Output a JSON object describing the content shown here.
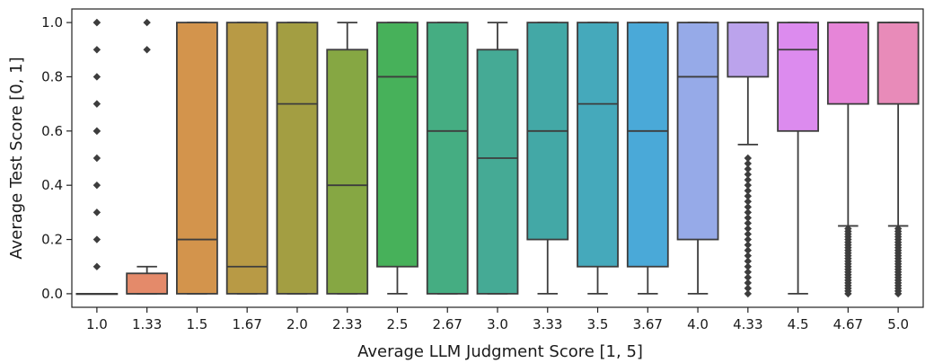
{
  "chart_data": {
    "type": "boxplot",
    "title": "",
    "xlabel": "Average LLM Judgment Score [1, 5]",
    "ylabel": "Average Test Score [0, 1]",
    "ylim": [
      -0.05,
      1.05
    ],
    "yticks": [
      0.0,
      0.2,
      0.4,
      0.6,
      0.8,
      1.0
    ],
    "ytick_labels": [
      "0.0",
      "0.2",
      "0.4",
      "0.6",
      "0.8",
      "1.0"
    ],
    "grid": false,
    "legend": "none",
    "categories": [
      "1.0",
      "1.33",
      "1.5",
      "1.67",
      "2.0",
      "2.33",
      "2.5",
      "2.67",
      "3.0",
      "3.33",
      "3.5",
      "3.67",
      "4.0",
      "4.33",
      "4.5",
      "4.67",
      "5.0"
    ],
    "boxes": [
      {
        "category": "1.0",
        "color": "#e27c7c",
        "q1": 0.0,
        "median": 0.0,
        "q3": 0.0,
        "whisker_low": 0.0,
        "whisker_high": 0.0,
        "fliers": [
          0.1,
          0.2,
          0.3,
          0.4,
          0.5,
          0.6,
          0.6,
          0.7,
          0.8,
          0.9,
          1.0,
          1.0
        ]
      },
      {
        "category": "1.33",
        "color": "#e48a6a",
        "q1": 0.0,
        "median": 0.0,
        "q3": 0.075,
        "whisker_low": 0.0,
        "whisker_high": 0.1,
        "fliers": [
          0.9,
          1.0
        ]
      },
      {
        "category": "1.5",
        "color": "#d3944c",
        "q1": 0.0,
        "median": 0.2,
        "q3": 1.0,
        "whisker_low": 0.0,
        "whisker_high": 1.0,
        "fliers": []
      },
      {
        "category": "1.67",
        "color": "#b89a45",
        "q1": 0.0,
        "median": 0.1,
        "q3": 1.0,
        "whisker_low": 0.0,
        "whisker_high": 1.0,
        "fliers": []
      },
      {
        "category": "2.0",
        "color": "#a39e42",
        "q1": 0.0,
        "median": 0.7,
        "q3": 1.0,
        "whisker_low": 0.0,
        "whisker_high": 1.0,
        "fliers": []
      },
      {
        "category": "2.33",
        "color": "#86a743",
        "q1": 0.0,
        "median": 0.4,
        "q3": 0.9,
        "whisker_low": 0.0,
        "whisker_high": 1.0,
        "fliers": []
      },
      {
        "category": "2.5",
        "color": "#47b15a",
        "q1": 0.1,
        "median": 0.8,
        "q3": 1.0,
        "whisker_low": 0.0,
        "whisker_high": 1.0,
        "fliers": []
      },
      {
        "category": "2.67",
        "color": "#45ad82",
        "q1": 0.0,
        "median": 0.6,
        "q3": 1.0,
        "whisker_low": 0.0,
        "whisker_high": 1.0,
        "fliers": []
      },
      {
        "category": "3.0",
        "color": "#45aa95",
        "q1": 0.0,
        "median": 0.5,
        "q3": 0.9,
        "whisker_low": 0.0,
        "whisker_high": 1.0,
        "fliers": []
      },
      {
        "category": "3.33",
        "color": "#43a8a6",
        "q1": 0.2,
        "median": 0.6,
        "q3": 1.0,
        "whisker_low": 0.0,
        "whisker_high": 1.0,
        "fliers": []
      },
      {
        "category": "3.5",
        "color": "#45a9bb",
        "q1": 0.1,
        "median": 0.7,
        "q3": 1.0,
        "whisker_low": 0.0,
        "whisker_high": 1.0,
        "fliers": []
      },
      {
        "category": "3.67",
        "color": "#4aa9d8",
        "q1": 0.1,
        "median": 0.6,
        "q3": 1.0,
        "whisker_low": 0.0,
        "whisker_high": 1.0,
        "fliers": []
      },
      {
        "category": "4.0",
        "color": "#96aae8",
        "q1": 0.2,
        "median": 0.8,
        "q3": 1.0,
        "whisker_low": 0.0,
        "whisker_high": 1.0,
        "fliers": []
      },
      {
        "category": "4.33",
        "color": "#bba3ec",
        "q1": 0.8,
        "median": 1.0,
        "q3": 1.0,
        "whisker_low": 0.55,
        "whisker_high": 1.0,
        "fliers": [
          0.0,
          0.02,
          0.04,
          0.06,
          0.08,
          0.1,
          0.12,
          0.14,
          0.16,
          0.18,
          0.2,
          0.22,
          0.24,
          0.26,
          0.28,
          0.3,
          0.32,
          0.34,
          0.36,
          0.38,
          0.4,
          0.42,
          0.44,
          0.46,
          0.48,
          0.5
        ]
      },
      {
        "category": "4.5",
        "color": "#dc8bee",
        "q1": 0.6,
        "median": 0.9,
        "q3": 1.0,
        "whisker_low": 0.0,
        "whisker_high": 1.0,
        "fliers": []
      },
      {
        "category": "4.67",
        "color": "#e685d8",
        "q1": 0.7,
        "median": 1.0,
        "q3": 1.0,
        "whisker_low": 0.25,
        "whisker_high": 1.0,
        "fliers": [
          0.0,
          0.01,
          0.02,
          0.03,
          0.04,
          0.05,
          0.06,
          0.07,
          0.08,
          0.09,
          0.1,
          0.11,
          0.12,
          0.13,
          0.14,
          0.15,
          0.16,
          0.17,
          0.18,
          0.19,
          0.2,
          0.21,
          0.22,
          0.23,
          0.24
        ]
      },
      {
        "category": "5.0",
        "color": "#e88bb9",
        "q1": 0.7,
        "median": 1.0,
        "q3": 1.0,
        "whisker_low": 0.25,
        "whisker_high": 1.0,
        "fliers": [
          0.0,
          0.01,
          0.02,
          0.03,
          0.04,
          0.05,
          0.06,
          0.07,
          0.08,
          0.09,
          0.1,
          0.11,
          0.12,
          0.13,
          0.14,
          0.15,
          0.16,
          0.17,
          0.18,
          0.19,
          0.2,
          0.21,
          0.22,
          0.23,
          0.24
        ]
      }
    ],
    "colors": {
      "line": "#3d3d3d",
      "axis": "#222222"
    }
  }
}
